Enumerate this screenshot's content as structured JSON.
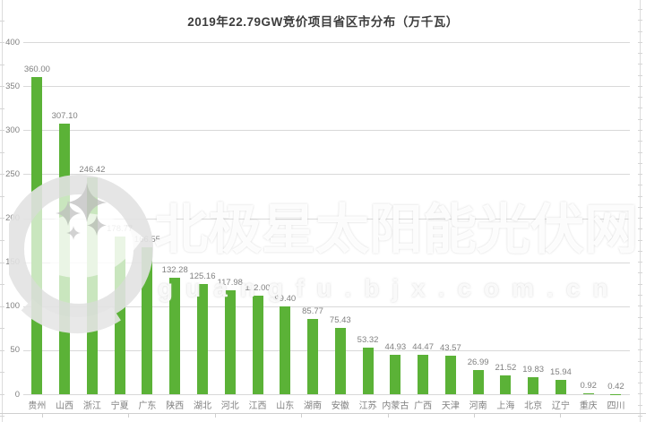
{
  "title": "2019年22.79GW竞价项目省区市分布（万千瓦）",
  "chart_data": {
    "type": "bar",
    "title": "2019年22.79GW竞价项目省区市分布（万千瓦）",
    "categories": [
      "贵州",
      "山西",
      "浙江",
      "宁夏",
      "广东",
      "陕西",
      "湖北",
      "河北",
      "江西",
      "山东",
      "湖南",
      "安徽",
      "江苏",
      "内蒙古",
      "广西",
      "天津",
      "河南",
      "上海",
      "北京",
      "辽宁",
      "重庆",
      "四川"
    ],
    "values": [
      360.0,
      307.1,
      246.42,
      178.77,
      166.55,
      132.28,
      125.16,
      117.98,
      112.0,
      99.4,
      85.77,
      75.43,
      53.32,
      44.93,
      44.47,
      43.57,
      26.99,
      21.52,
      19.83,
      15.94,
      0.92,
      0.42
    ],
    "value_labels": [
      "360.00",
      "307.10",
      "246.42",
      "178.77",
      "166.55",
      "132.28",
      "125.16",
      "117.98",
      "112.00",
      "99.40",
      "85.77",
      "75.43",
      "53.32",
      "44.93",
      "44.47",
      "43.57",
      "26.99",
      "21.52",
      "19.83",
      "15.94",
      "0.92",
      "0.42"
    ],
    "xlabel": "",
    "ylabel": "",
    "ylim": [
      0,
      400
    ],
    "yticks": [
      0,
      50,
      100,
      150,
      200,
      250,
      300,
      350,
      400
    ],
    "grid": "horizontal",
    "legend": "none",
    "bar_color": "#5bb237",
    "gridline_color": "#d9d9d9",
    "axis_label_color": "#808080",
    "data_label_color": "#808080",
    "title_color": "#3d3d3d"
  },
  "watermark": {
    "logo": "bjx-polaris-star-logo",
    "text": "北极星太阳能光伏网",
    "url": "guangfu.bjx.com.cn"
  }
}
